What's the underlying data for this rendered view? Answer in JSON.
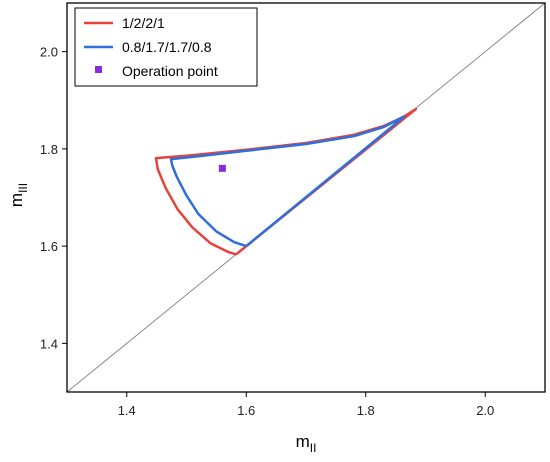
{
  "chart_data": {
    "type": "line",
    "xlabel": "m",
    "xlabel_sub": "II",
    "ylabel": "m",
    "ylabel_sub": "III",
    "xlim": [
      1.3,
      2.1
    ],
    "ylim": [
      1.3,
      2.1
    ],
    "xticks": [
      1.4,
      1.6,
      1.8,
      2.0
    ],
    "yticks": [
      1.4,
      1.6,
      1.8,
      2.0
    ],
    "xtick_labels": [
      "1.4",
      "1.6",
      "1.8",
      "2.0"
    ],
    "ytick_labels": [
      "1.4",
      "1.6",
      "1.8",
      "2.0"
    ],
    "grid": false,
    "legend_position": "top-left",
    "diagonal": {
      "x": [
        1.3,
        2.1
      ],
      "y": [
        1.3,
        2.1
      ],
      "color": "#808080"
    },
    "series": [
      {
        "name": "1/2/2/1",
        "color": "#e8413c",
        "x": [
          1.583,
          1.57,
          1.54,
          1.51,
          1.485,
          1.465,
          1.452,
          1.449,
          1.5,
          1.6,
          1.7,
          1.78,
          1.83,
          1.862,
          1.884,
          1.583
        ],
        "y": [
          1.583,
          1.588,
          1.606,
          1.638,
          1.676,
          1.72,
          1.758,
          1.781,
          1.786,
          1.798,
          1.812,
          1.829,
          1.847,
          1.865,
          1.882,
          1.583
        ]
      },
      {
        "name": "0.8/1.7/1.7/0.8",
        "color": "#2f6fdb",
        "x": [
          1.6,
          1.58,
          1.55,
          1.52,
          1.5,
          1.484,
          1.476,
          1.474,
          1.52,
          1.6,
          1.7,
          1.78,
          1.83,
          1.865,
          1.6
        ],
        "y": [
          1.6,
          1.608,
          1.63,
          1.666,
          1.704,
          1.742,
          1.766,
          1.779,
          1.785,
          1.796,
          1.81,
          1.826,
          1.845,
          1.867,
          1.6
        ]
      }
    ],
    "points": [
      {
        "name": "Operation point",
        "x": 1.56,
        "y": 1.76,
        "color": "#8a2be2"
      }
    ]
  }
}
